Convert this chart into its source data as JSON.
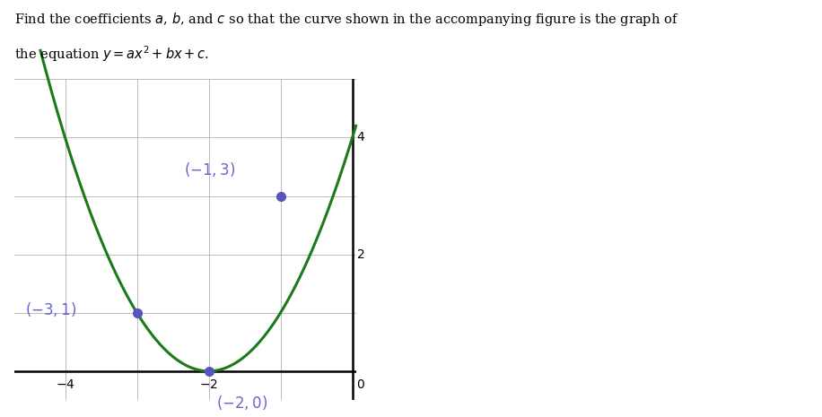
{
  "curve_color": "#1a7a1a",
  "point_color": "#5555bb",
  "points": [
    [
      -3,
      1
    ],
    [
      -1,
      3
    ],
    [
      -2,
      0
    ]
  ],
  "a": 1,
  "b": 4,
  "c": 4,
  "x_min": -4.7,
  "x_max": 0.05,
  "y_min": -0.5,
  "y_max": 5.0,
  "grid_color": "#bbbbbb",
  "background_color": "#ffffff",
  "axis_color": "#000000",
  "label_color": "#6666cc",
  "fig_width": 9.16,
  "fig_height": 4.65
}
